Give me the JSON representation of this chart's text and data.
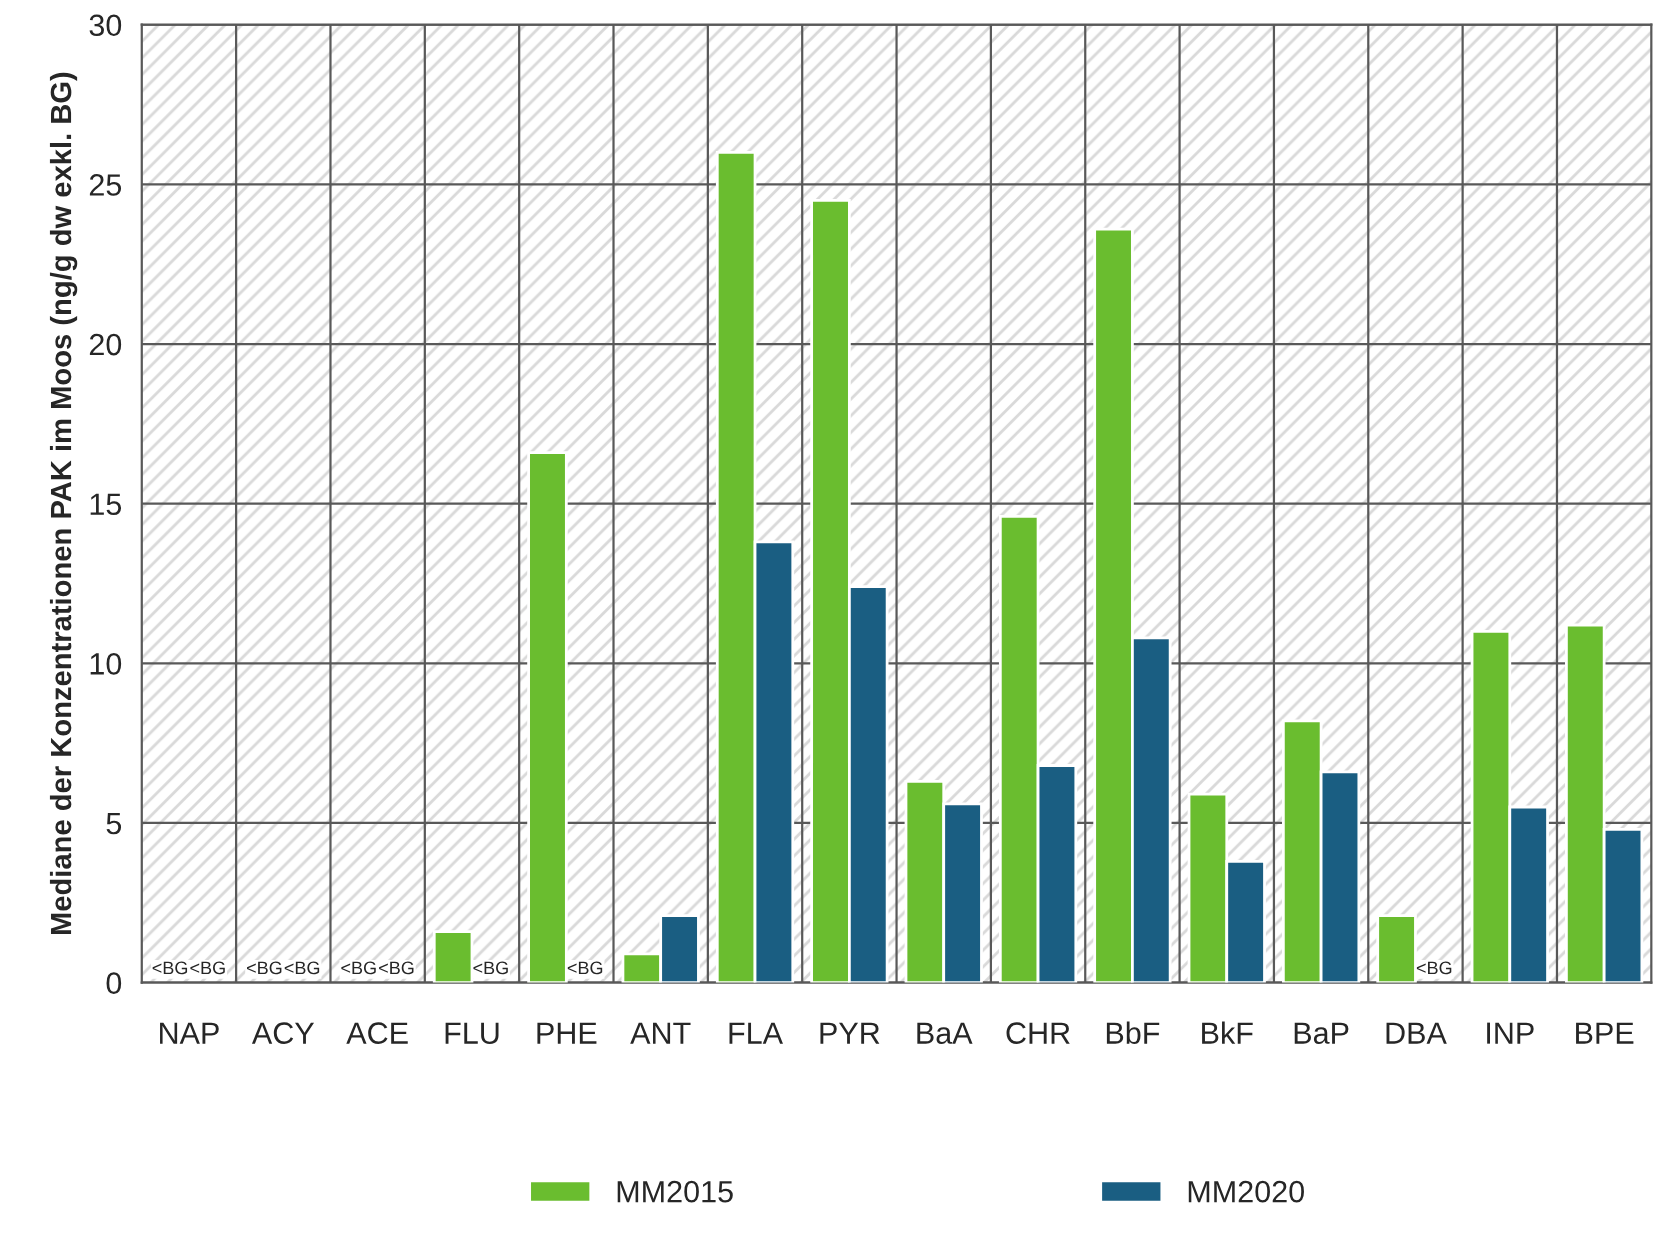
{
  "chart_data": {
    "type": "bar",
    "ylabel": "Mediane der Konzentrationen PAK im Moos (ng/g dw exkl. BG)",
    "categories": [
      "NAP",
      "ACY",
      "ACE",
      "FLU",
      "PHE",
      "ANT",
      "FLA",
      "PYR",
      "BaA",
      "CHR",
      "BbF",
      "BkF",
      "BaP",
      "DBA",
      "INP",
      "BPE"
    ],
    "series": [
      {
        "name": "MM2015",
        "color": "#6abd2f",
        "values": [
          null,
          null,
          null,
          1.6,
          16.6,
          0.9,
          26.0,
          24.5,
          6.3,
          14.6,
          23.6,
          5.9,
          8.2,
          2.1,
          11.0,
          11.2
        ],
        "value_labels": [
          "<BG",
          "<BG",
          "<BG",
          null,
          null,
          null,
          null,
          null,
          null,
          null,
          null,
          null,
          null,
          null,
          null,
          null
        ]
      },
      {
        "name": "MM2020",
        "color": "#1a5e82",
        "values": [
          null,
          null,
          null,
          null,
          null,
          2.1,
          13.8,
          12.4,
          5.6,
          6.8,
          10.8,
          3.8,
          6.6,
          null,
          5.5,
          4.8
        ],
        "value_labels": [
          "<BG",
          "<BG",
          "<BG",
          "<BG",
          "<BG",
          null,
          null,
          null,
          null,
          null,
          null,
          null,
          null,
          "<BG",
          null,
          null
        ]
      }
    ],
    "ylim": [
      0,
      30
    ],
    "yticks": [
      0,
      5,
      10,
      15,
      20,
      25,
      30
    ],
    "grid": true,
    "legend": "bottom"
  }
}
